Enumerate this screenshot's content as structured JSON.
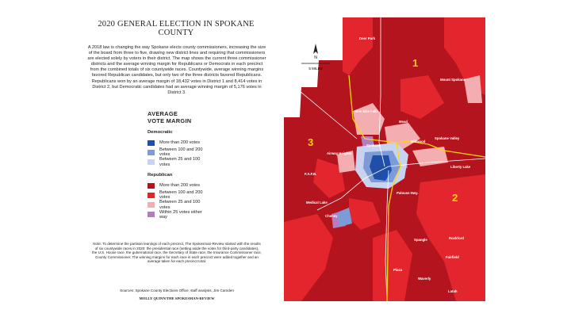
{
  "header": {
    "title": "2020 GENERAL ELECTION IN SPOKANE COUNTY",
    "intro": "A 2018 law is changing the way Spokane elects county commissioners, increasing the size of the board from three to five, drawing new district lines and requiring that commissioners are elected solely by voters in their district. The map shows the current three commissioner districts and the average winning margin for Republicans or Democrats in each precinct from the combined totals of six countywide races. Countywide, average winning margins favored Republican candidates, but only two of the three districts favored Republicans. Republicans won by an average margin of 18,432 votes in District 1 and 8,414 votes in District 2, but Democratic candidates had an average winning margin of 5,176 votes in District 3."
  },
  "legend": {
    "title_line1": "AVERAGE",
    "title_line2": "VOTE MARGIN",
    "groups": [
      {
        "name": "Democratic",
        "items": [
          {
            "label": "More than 200 votes",
            "color": "#1f4fa8"
          },
          {
            "label": "Between 100 and 200 votes",
            "color": "#7d9bd6"
          },
          {
            "label": "Between 25 and 100 votes",
            "color": "#c8d4ef"
          }
        ]
      },
      {
        "name": "Republican",
        "items": [
          {
            "label": "More than 200 votes",
            "color": "#b3141d"
          },
          {
            "label": "Between 100 and 200 votes",
            "color": "#e3262e"
          },
          {
            "label": "Between 25 and 100 votes",
            "color": "#f4aeb1"
          },
          {
            "label": "Within 25 votes either way",
            "color": "#b67cc2"
          }
        ]
      }
    ]
  },
  "note": "Note: To determine the partisan leanings of each precinct, The Spokesman-Review started with the results of six countywide races in 2020: the presidential race (setting aside the votes for third-party candidates), the U.S. House race, the gubernatorial race, the Secretary of State race, the Insurance Commissioner race, County Commissioner. The winning margins for each race in each precinct were added together and an average taken for each precinct total.",
  "sources": "Sources: Spokane County Elections Office; staff analysis, Jim Camden",
  "credit": "MOLLY QUINN/THE SPOKESMAN-REVIEW",
  "map": {
    "north": "N",
    "scale": "5 MILES",
    "districts": [
      "1",
      "2",
      "3"
    ],
    "places": [
      "Deer Park",
      "Mount Spokane",
      "Nine Mile Falls",
      "Mead",
      "Millwood",
      "Spokane Valley",
      "Spokane",
      "Airway Heights",
      "F.A.F.B.",
      "Liberty Lake",
      "Medical Lake",
      "Cheney",
      "Palouse Hwy.",
      "Spangle",
      "Rockford",
      "Fairfield",
      "Plaza",
      "Waverly",
      "Latah"
    ]
  }
}
